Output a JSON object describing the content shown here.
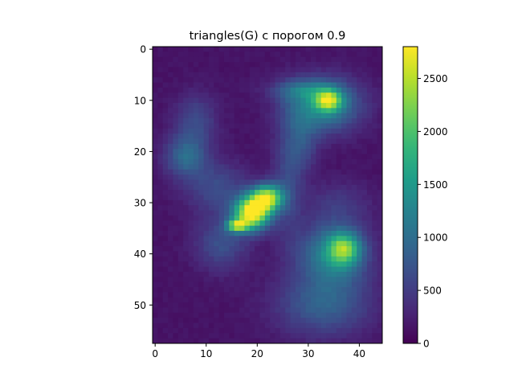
{
  "chart_data": {
    "type": "heatmap",
    "title": "triangles(G) с порогом 0.9",
    "xlabel": "",
    "ylabel": "",
    "colormap": "viridis",
    "grid": false,
    "legend": "colorbar on the right",
    "n_cols": 45,
    "n_rows": 58,
    "xlim": [
      -0.5,
      44.5
    ],
    "ylim": [
      57.5,
      -0.5
    ],
    "x_ticks": [
      0,
      10,
      20,
      30,
      40
    ],
    "y_ticks": [
      0,
      10,
      20,
      30,
      40,
      50
    ],
    "x_tick_labels": [
      "0",
      "10",
      "20",
      "30",
      "40"
    ],
    "y_tick_labels": [
      "0",
      "10",
      "20",
      "30",
      "40",
      "50"
    ],
    "value_range": [
      0,
      2800
    ],
    "colorbar_ticks": [
      0,
      500,
      1000,
      1500,
      2000,
      2500
    ],
    "colorbar_tick_labels": [
      "0",
      "500",
      "1000",
      "1500",
      "2000",
      "2500"
    ],
    "background_value": 150,
    "regions": [
      {
        "cx": 19,
        "cy": 32,
        "rx": 3.5,
        "ry": 3.2,
        "peak": 2750
      },
      {
        "cx": 22,
        "cy": 29,
        "rx": 3.0,
        "ry": 2.5,
        "peak": 2150
      },
      {
        "cx": 16,
        "cy": 34.5,
        "rx": 2.0,
        "ry": 1.2,
        "peak": 1700
      },
      {
        "cx": 33,
        "cy": 11,
        "rx": 7.0,
        "ry": 5.0,
        "peak": 1200
      },
      {
        "cx": 34,
        "cy": 10,
        "rx": 2.5,
        "ry": 2.0,
        "peak": 1550
      },
      {
        "cx": 29,
        "cy": 8,
        "rx": 6.0,
        "ry": 2.0,
        "peak": 600
      },
      {
        "cx": 35,
        "cy": 40,
        "rx": 6.5,
        "ry": 6.0,
        "peak": 1150
      },
      {
        "cx": 37,
        "cy": 39,
        "rx": 3.0,
        "ry": 3.0,
        "peak": 1350
      },
      {
        "cx": 33,
        "cy": 50,
        "rx": 9.0,
        "ry": 6.0,
        "peak": 700
      },
      {
        "cx": 6,
        "cy": 21,
        "rx": 4.0,
        "ry": 4.0,
        "peak": 800
      },
      {
        "cx": 8,
        "cy": 14,
        "rx": 4.0,
        "ry": 5.0,
        "peak": 500
      },
      {
        "cx": 13,
        "cy": 38,
        "rx": 5.0,
        "ry": 5.0,
        "peak": 550
      },
      {
        "cx": 26,
        "cy": 25,
        "rx": 3.0,
        "ry": 12.0,
        "peak": 450
      },
      {
        "cx": 12,
        "cy": 27,
        "rx": 6.0,
        "ry": 5.0,
        "peak": 500
      },
      {
        "cx": 36,
        "cy": 30,
        "rx": 6.0,
        "ry": 4.0,
        "peak": 300
      },
      {
        "cx": 29,
        "cy": 18,
        "rx": 3.0,
        "ry": 6.0,
        "peak": 450
      }
    ]
  }
}
